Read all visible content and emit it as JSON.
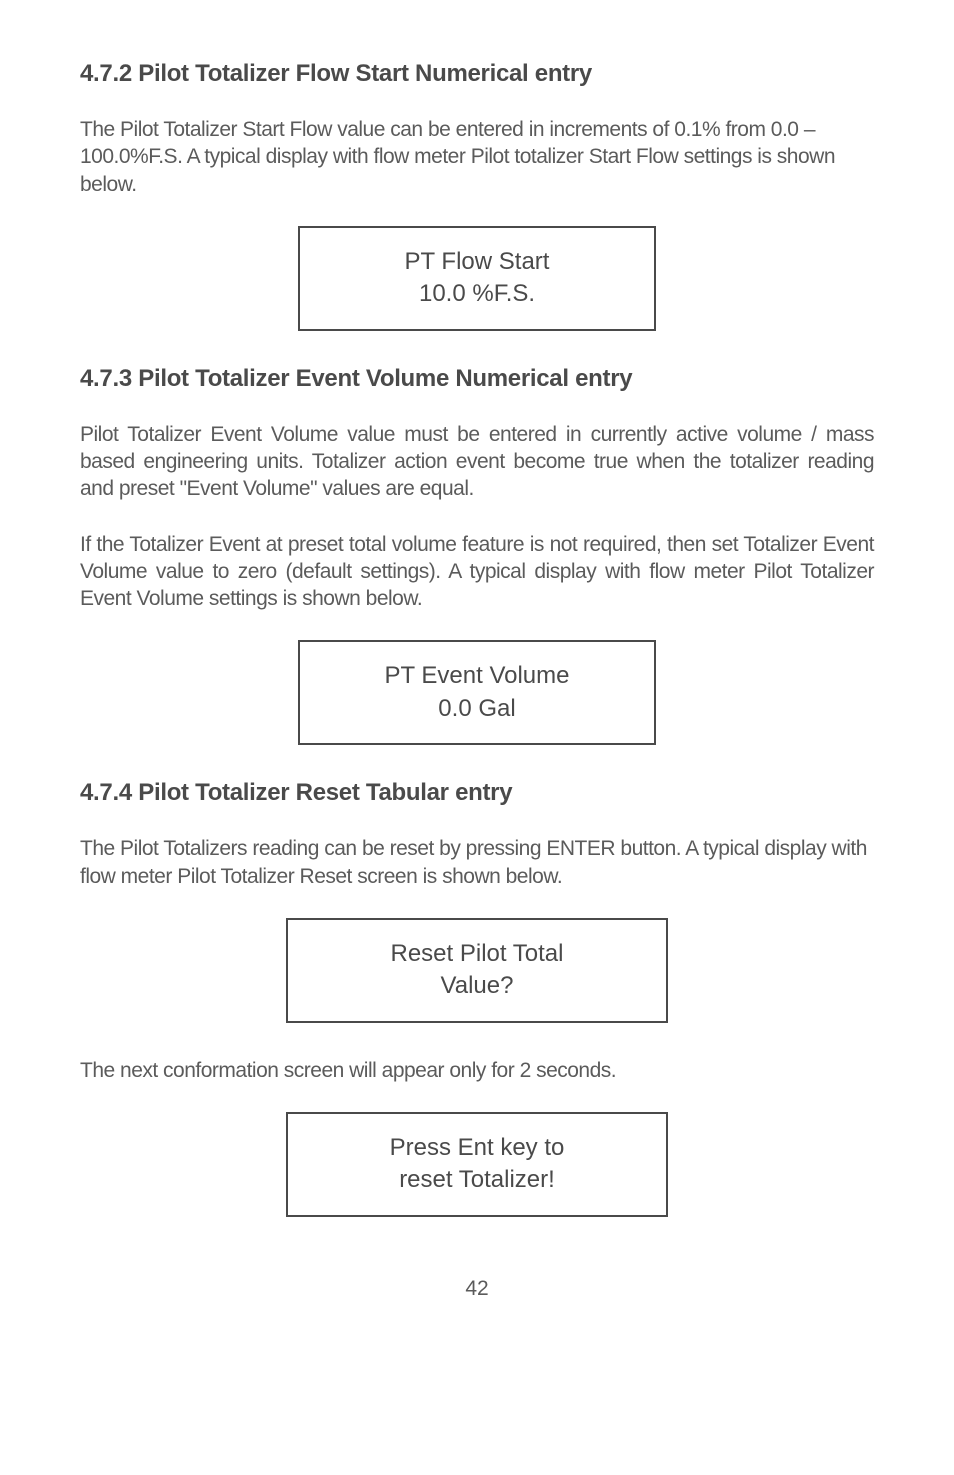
{
  "sections": {
    "s472": {
      "heading": "4.7.2 Pilot Totalizer Flow Start Numerical entry",
      "paragraph1": "The Pilot Totalizer Start Flow value can be entered in increments of 0.1% from 0.0 – 100.0%F.S. A typical display with flow meter Pilot totalizer Start Flow settings is shown below.",
      "display": {
        "line1": "PT Flow Start",
        "line2": "10.0 %F.S."
      }
    },
    "s473": {
      "heading": "4.7.3 Pilot Totalizer Event Volume Numerical entry",
      "paragraph1": "Pilot Totalizer Event Volume value must be entered in currently active volume / mass based engineering units. Totalizer action event become true when the totalizer reading and preset \"Event Volume\" values are equal.",
      "paragraph2": "If the Totalizer Event at preset total volume feature is not required, then set Totalizer Event Volume value to zero (default settings). A typical display with flow meter Pilot Totalizer Event Volume settings is shown below.",
      "display": {
        "line1": "PT Event Volume",
        "line2": "0.0 Gal"
      }
    },
    "s474": {
      "heading": "4.7.4 Pilot Totalizer Reset Tabular entry",
      "paragraph1": "The Pilot Totalizers reading can be reset by pressing ENTER button. A typical display with flow meter Pilot Totalizer Reset screen is shown below.",
      "display1": {
        "line1": "Reset Pilot Total",
        "line2": "Value?"
      },
      "paragraph2": "The next conformation screen will appear only for 2 seconds.",
      "display2": {
        "line1": "Press Ent key to",
        "line2": "reset Totalizer!"
      }
    }
  },
  "page_number": "42"
}
